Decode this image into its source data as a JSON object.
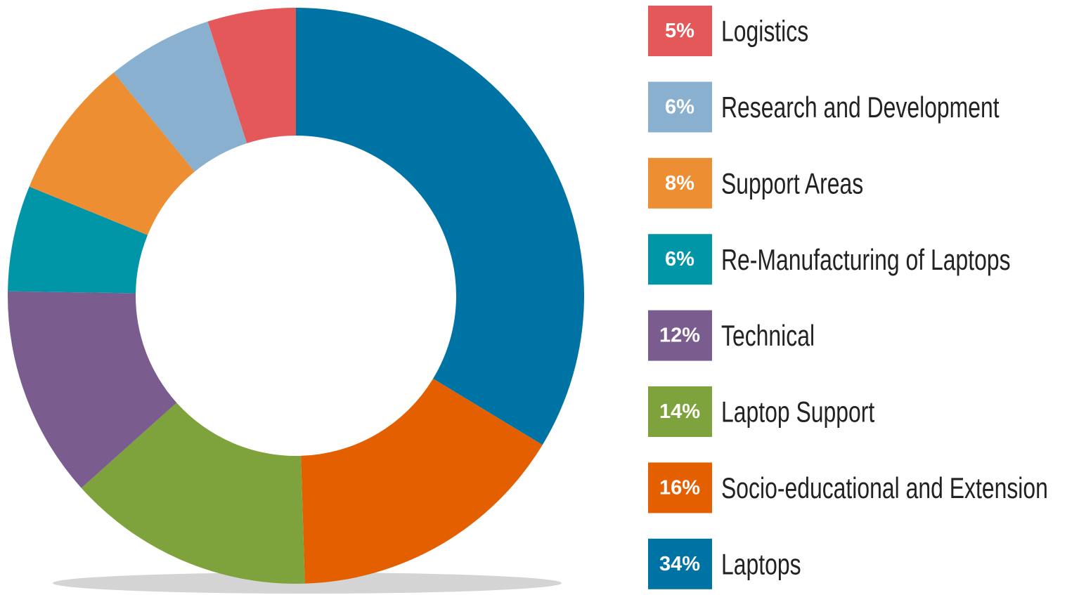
{
  "chart_data": {
    "type": "donut",
    "categories": [
      "Logistics",
      "Research and Development",
      "Support Areas",
      "Re-Manufacturing of Laptops",
      "Technical",
      "Laptop Support",
      "Socio-educational and Extension",
      "Laptops"
    ],
    "values": [
      5,
      6,
      8,
      6,
      12,
      14,
      16,
      34
    ],
    "value_labels": [
      "5%",
      "6%",
      "8%",
      "6%",
      "12%",
      "14%",
      "16%",
      "34%"
    ],
    "colors": [
      "#e5585a",
      "#8ab0cf",
      "#ee8e32",
      "#0096a8",
      "#7a5c8f",
      "#7ea23c",
      "#e45f00",
      "#0073a5"
    ]
  }
}
